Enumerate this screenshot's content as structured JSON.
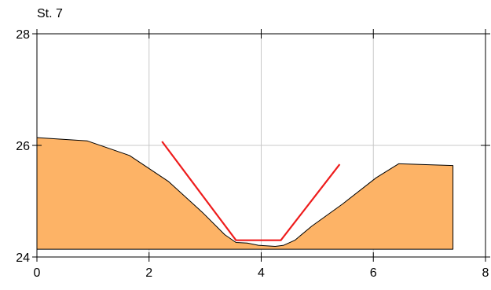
{
  "chart_data": {
    "type": "area",
    "title": "St. 7",
    "xlabel": "",
    "ylabel": "",
    "xlim": [
      0,
      8
    ],
    "ylim": [
      24,
      28
    ],
    "x_ticks": [
      0,
      2,
      4,
      6,
      8
    ],
    "y_ticks": [
      24,
      26,
      28
    ],
    "x_tick_labels": [
      "0",
      "2",
      "4",
      "6",
      "8"
    ],
    "y_tick_labels": [
      "24",
      "26",
      "28"
    ],
    "grid": true,
    "legend": "none",
    "series": [
      {
        "kind": "area",
        "fill_color": "#fdb366",
        "line_color": "#000000",
        "baseline": 24.14,
        "points": [
          [
            0,
            26.14
          ],
          [
            0.9,
            26.08
          ],
          [
            1.65,
            25.82
          ],
          [
            2.35,
            25.35
          ],
          [
            2.95,
            24.8
          ],
          [
            3.35,
            24.4
          ],
          [
            3.55,
            24.26
          ],
          [
            3.75,
            24.25
          ],
          [
            3.95,
            24.21
          ],
          [
            4.25,
            24.19
          ],
          [
            4.4,
            24.21
          ],
          [
            4.6,
            24.3
          ],
          [
            4.9,
            24.55
          ],
          [
            5.45,
            24.95
          ],
          [
            6.05,
            25.42
          ],
          [
            6.45,
            25.67
          ],
          [
            7.42,
            25.64
          ]
        ]
      },
      {
        "kind": "line",
        "line_color": "#ee1c1c",
        "points": [
          [
            2.23,
            26.07
          ],
          [
            3.55,
            24.3
          ],
          [
            4.35,
            24.3
          ],
          [
            5.4,
            25.66
          ]
        ]
      }
    ]
  }
}
